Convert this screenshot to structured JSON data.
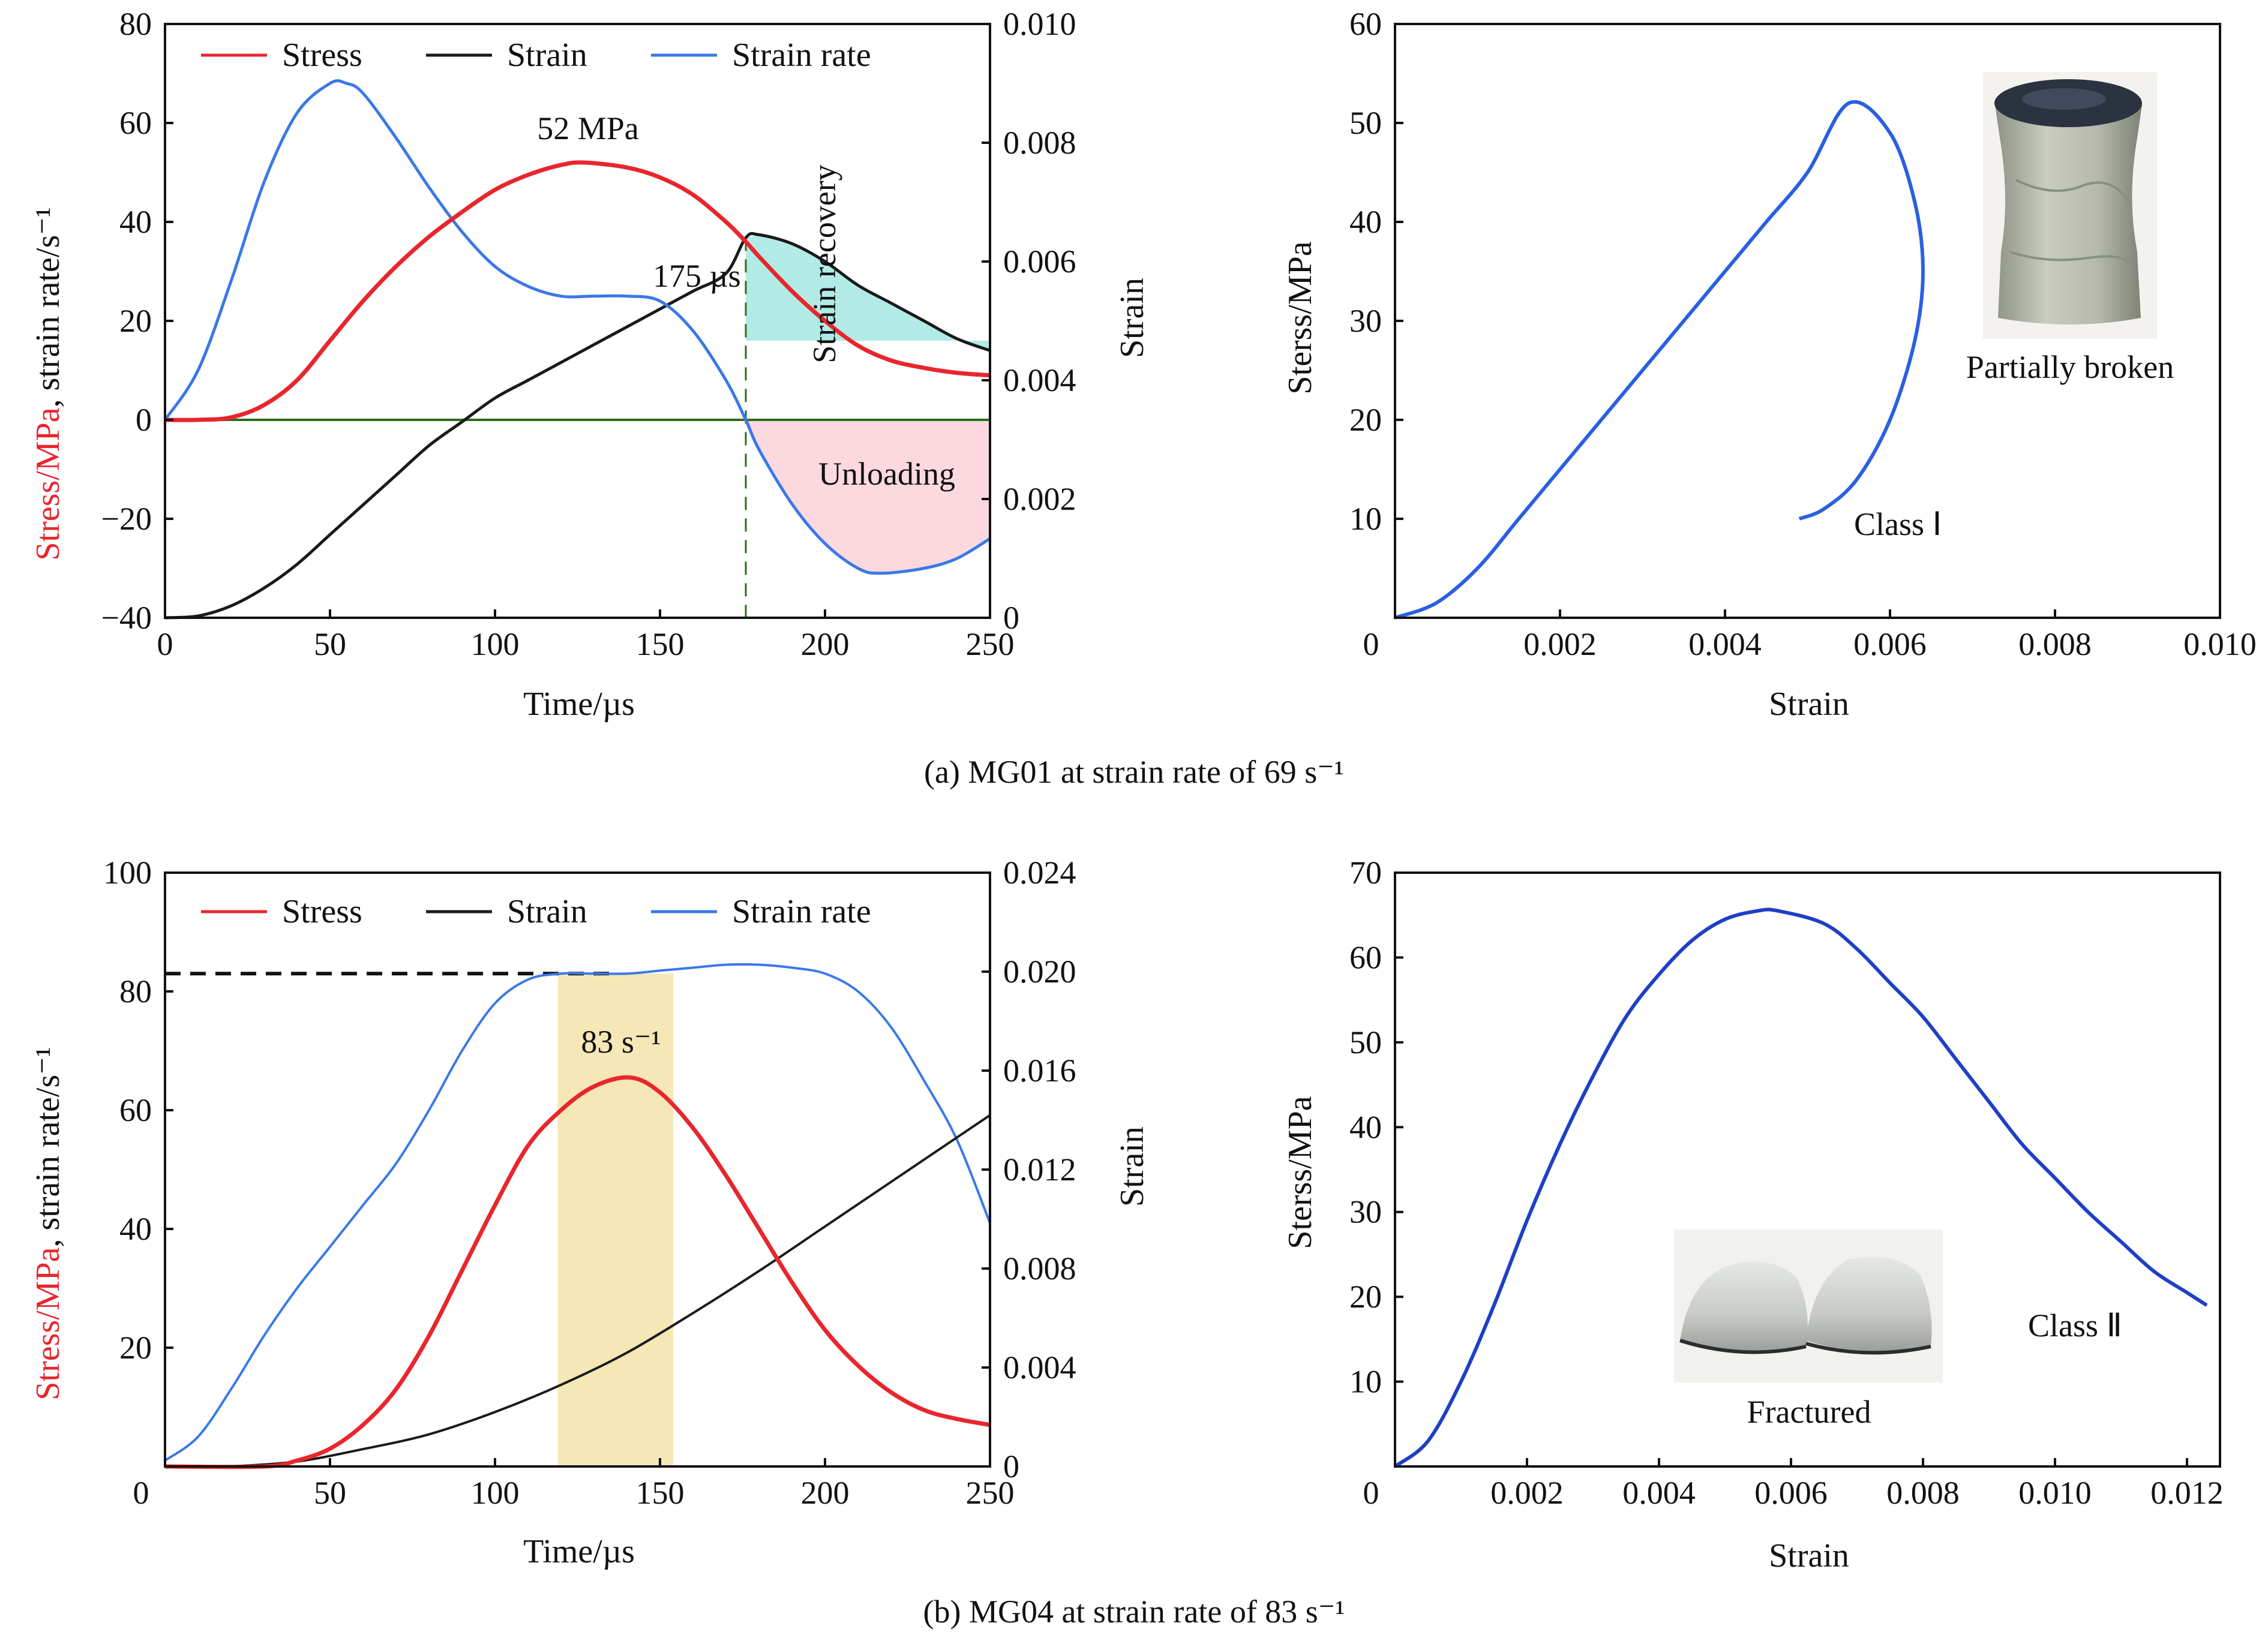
{
  "colors": {
    "stress": "#e8262d",
    "strain": "#1a1a1a",
    "strain_rate": "#3b78e7",
    "stress_strain": "#2a5fe0",
    "zero_line": "#2e6b1e",
    "marker_175": "#2e6b1e",
    "recovery_fill": "#b2ebe6",
    "unloading_fill": "#fbd9df",
    "highlight_band": "#f5e7b6"
  },
  "captions": {
    "a": "(a) MG01 at strain rate of 69 s⁻¹",
    "b": "(b) MG04 at strain rate of 83 s⁻¹"
  },
  "photo_labels": {
    "a": "Partially broken",
    "b": "Fractured"
  },
  "chart_data": [
    {
      "id": "a-left",
      "type": "line",
      "title": "",
      "xlabel": "Time/µs",
      "ylabel_parts": [
        "Stress/MPa",
        ", strain rate/s⁻¹"
      ],
      "y2label": "Strain",
      "xlim": [
        0,
        250
      ],
      "ylim": [
        -40,
        80
      ],
      "y2lim": [
        0,
        0.01
      ],
      "xticks": [
        "0",
        "50",
        "100",
        "150",
        "200",
        "250"
      ],
      "yticks": [
        "−40",
        "−20",
        "0",
        "20",
        "40",
        "60",
        "80"
      ],
      "y2ticks": [
        "0",
        "0.002",
        "0.004",
        "0.006",
        "0.008",
        "0.010"
      ],
      "legend": [
        "Stress",
        "Strain",
        "Strain rate"
      ],
      "legend_placement": "top",
      "series": [
        {
          "name": "Stress",
          "axis": "left",
          "x": [
            0,
            10,
            20,
            30,
            40,
            50,
            60,
            70,
            80,
            90,
            100,
            110,
            120,
            127,
            140,
            150,
            160,
            170,
            176,
            180,
            190,
            200,
            210,
            220,
            230,
            240,
            250
          ],
          "values": [
            0,
            0,
            0.5,
            3,
            8,
            16,
            24,
            31,
            37,
            42,
            46.5,
            49.5,
            51.5,
            52,
            51,
            49,
            45.5,
            40,
            36,
            33,
            26,
            20,
            15,
            12,
            10.5,
            9.5,
            9
          ]
        },
        {
          "name": "Strain",
          "axis": "right",
          "x": [
            0,
            10,
            20,
            30,
            40,
            50,
            60,
            70,
            80,
            90,
            100,
            110,
            120,
            130,
            140,
            150,
            160,
            170,
            176,
            180,
            190,
            200,
            210,
            220,
            230,
            240,
            250
          ],
          "values": [
            0,
            3e-05,
            0.0002,
            0.0005,
            0.0009,
            0.0014,
            0.0019,
            0.0024,
            0.0029,
            0.0033,
            0.0037,
            0.004,
            0.0043,
            0.0046,
            0.0049,
            0.0052,
            0.0055,
            0.0058,
            0.0064,
            0.00645,
            0.0063,
            0.006,
            0.0056,
            0.0053,
            0.005,
            0.0047,
            0.0045
          ]
        },
        {
          "name": "Strain rate",
          "axis": "left",
          "x": [
            0,
            10,
            20,
            30,
            40,
            50,
            55,
            60,
            70,
            80,
            90,
            100,
            110,
            120,
            130,
            140,
            150,
            160,
            170,
            176,
            180,
            190,
            200,
            210,
            217,
            230,
            240,
            250
          ],
          "values": [
            0,
            10,
            28,
            48,
            62,
            68,
            68,
            66,
            57,
            47,
            38,
            31,
            27,
            25,
            25,
            25,
            24,
            18,
            8,
            0,
            -6,
            -17,
            -25,
            -30,
            -31,
            -30,
            -28,
            -24
          ]
        }
      ],
      "annotations": [
        {
          "text": "52 MPa"
        },
        {
          "text": "175 µs"
        },
        {
          "text": "Strain recovery"
        },
        {
          "text": "Unloading"
        }
      ]
    },
    {
      "id": "a-right",
      "type": "line",
      "title": "",
      "xlabel": "Strain",
      "ylabel": "Sterss/MPa",
      "xlim": [
        0,
        0.01
      ],
      "ylim": [
        0,
        60
      ],
      "xticks": [
        "0",
        "0.002",
        "0.004",
        "0.006",
        "0.008",
        "0.010"
      ],
      "yticks": [
        "10",
        "20",
        "30",
        "40",
        "50",
        "60"
      ],
      "series": [
        {
          "name": "Class Ⅰ",
          "x": [
            0,
            0.0005,
            0.001,
            0.0015,
            0.002,
            0.0025,
            0.003,
            0.0035,
            0.004,
            0.0045,
            0.005,
            0.0055,
            0.006,
            0.0063,
            0.0064,
            0.0063,
            0.006,
            0.0056,
            0.0052,
            0.0049
          ],
          "values": [
            0,
            1.5,
            5,
            10,
            15,
            20,
            25,
            30,
            35,
            40,
            45,
            52,
            49,
            42,
            35,
            28,
            20,
            14,
            11,
            10
          ]
        }
      ],
      "annotations": [
        {
          "text": "Class Ⅰ"
        }
      ]
    },
    {
      "id": "b-left",
      "type": "line",
      "title": "",
      "xlabel": "Time/µs",
      "ylabel_parts": [
        "Stress/MPa",
        ", strain rate/s⁻¹"
      ],
      "y2label": "Strain",
      "xlim": [
        0,
        250
      ],
      "ylim": [
        0,
        100
      ],
      "y2lim": [
        0,
        0.024
      ],
      "xticks": [
        "0",
        "50",
        "100",
        "150",
        "200",
        "250"
      ],
      "yticks": [
        "20",
        "40",
        "60",
        "80",
        "100"
      ],
      "y2ticks": [
        "0",
        "0.004",
        "0.008",
        "0.012",
        "0.016",
        "0.020",
        "0.024"
      ],
      "legend": [
        "Stress",
        "Strain",
        "Strain rate"
      ],
      "legend_placement": "top",
      "series": [
        {
          "name": "Stress",
          "axis": "left",
          "x": [
            0,
            30,
            40,
            50,
            60,
            70,
            80,
            90,
            100,
            110,
            120,
            130,
            141,
            150,
            160,
            170,
            180,
            190,
            200,
            210,
            220,
            230,
            240,
            250
          ],
          "values": [
            0,
            0,
            1,
            3,
            7,
            13,
            22,
            33,
            44,
            54,
            60,
            64,
            65.5,
            63,
            57,
            49,
            40,
            31,
            23,
            17,
            12.5,
            9.5,
            8,
            7
          ]
        },
        {
          "name": "Strain",
          "axis": "right",
          "x": [
            20,
            40,
            60,
            80,
            100,
            120,
            140,
            160,
            180,
            200,
            220,
            240,
            250
          ],
          "values": [
            0,
            0.0002,
            0.0007,
            0.0013,
            0.0022,
            0.0033,
            0.0046,
            0.0062,
            0.0079,
            0.0097,
            0.0115,
            0.0133,
            0.0142
          ]
        },
        {
          "name": "Strain rate",
          "axis": "left",
          "x": [
            0,
            10,
            20,
            30,
            40,
            50,
            60,
            70,
            80,
            90,
            100,
            110,
            120,
            130,
            140,
            150,
            160,
            170,
            180,
            190,
            200,
            210,
            220,
            230,
            240,
            250
          ],
          "values": [
            1,
            5,
            13,
            22,
            30,
            37,
            44,
            51,
            60,
            70,
            78,
            82,
            83,
            83,
            83,
            83.5,
            84,
            84.5,
            84.5,
            84,
            83,
            80,
            74,
            65,
            55,
            41
          ]
        }
      ],
      "annotations": [
        {
          "text": "83 s⁻¹"
        }
      ]
    },
    {
      "id": "b-right",
      "type": "line",
      "title": "",
      "xlabel": "Strain",
      "ylabel": "Sterss/MPa",
      "xlim": [
        0,
        0.0125
      ],
      "ylim": [
        0,
        70
      ],
      "xticks": [
        "0",
        "0.002",
        "0.004",
        "0.006",
        "0.008",
        "0.010",
        "0.012"
      ],
      "yticks": [
        "10",
        "20",
        "30",
        "40",
        "50",
        "60",
        "70"
      ],
      "series": [
        {
          "name": "Class Ⅱ",
          "x": [
            0,
            0.0005,
            0.001,
            0.0015,
            0.002,
            0.0025,
            0.003,
            0.0035,
            0.004,
            0.0045,
            0.005,
            0.0055,
            0.0058,
            0.0065,
            0.007,
            0.0075,
            0.008,
            0.0085,
            0.009,
            0.0095,
            0.01,
            0.0105,
            0.011,
            0.0115,
            0.012,
            0.0123
          ],
          "values": [
            0,
            3,
            10,
            19,
            29,
            38,
            46,
            53,
            58,
            62,
            64.5,
            65.5,
            65.5,
            64,
            61,
            57,
            53,
            48,
            43,
            38,
            34,
            30,
            26.5,
            23,
            20.5,
            19
          ]
        }
      ],
      "annotations": [
        {
          "text": "Class Ⅱ"
        }
      ]
    }
  ]
}
